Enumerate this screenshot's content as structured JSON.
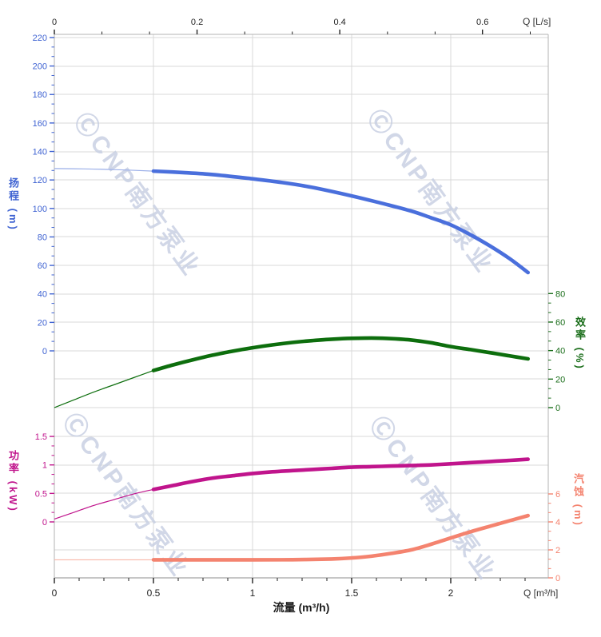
{
  "watermark": {
    "text": "ⒸCNP南方泵业",
    "color": "#c6cee2"
  },
  "labels": {
    "top_axis_unit": "Q [L/s]",
    "bottom_axis_unit": "Q [m³/h]",
    "bottom_axis_title": "流量 (m³/h)"
  },
  "chart_data": {
    "type": "line",
    "title": "",
    "xlabel": "流量 (m³/h)",
    "x_bottom": {
      "title": "流量 (m³/h)",
      "unit": "Q [m³/h]",
      "ticks": [
        0,
        0.5,
        1,
        1.5,
        2
      ],
      "minor_step": 0.125,
      "range": [
        0,
        2.49
      ]
    },
    "x_top": {
      "unit": "Q [L/s]",
      "ticks": [
        0,
        0.2,
        0.4,
        0.6
      ],
      "minor_step": 0.0667,
      "m3h_per_unit": 3.6
    },
    "grid": true,
    "legend": "none",
    "axes": [
      {
        "id": "head",
        "title": "扬程 (m)",
        "side": "left",
        "color": "#3f63d2",
        "min": 0,
        "max": 220,
        "step": 20,
        "grid_values": "all"
      },
      {
        "id": "eff",
        "title": "效率 (%)",
        "side": "right",
        "color": "#1b6e1b",
        "min": 0,
        "max": 80,
        "step": 20,
        "grid_values": [
          0,
          20
        ]
      },
      {
        "id": "power",
        "title": "功率 (kW)",
        "side": "left",
        "color": "#c0148c",
        "min": 0,
        "max": 1.5,
        "step": 0.5,
        "grid_values": "all"
      },
      {
        "id": "npsh",
        "title": "汽蚀 (m)",
        "side": "right",
        "color": "#f4836f",
        "min": 0,
        "max": 6,
        "step": 2,
        "grid_values": [
          2
        ]
      }
    ],
    "series": [
      {
        "id": "head-curve",
        "name": "扬程",
        "axis": "head",
        "color": "#4a6fdc",
        "thin_color": "#9aaee8",
        "split_q": 0.5,
        "points": [
          [
            0,
            128
          ],
          [
            0.15,
            127.8
          ],
          [
            0.3,
            127.3
          ],
          [
            0.5,
            126.2
          ],
          [
            0.65,
            125.2
          ],
          [
            0.8,
            123.8
          ],
          [
            1.0,
            120.8
          ],
          [
            1.15,
            118.2
          ],
          [
            1.3,
            114.8
          ],
          [
            1.5,
            108.8
          ],
          [
            1.65,
            103.7
          ],
          [
            1.8,
            98.2
          ],
          [
            1.9,
            93.5
          ],
          [
            2.0,
            88.5
          ],
          [
            2.1,
            81.5
          ],
          [
            2.2,
            73.5
          ],
          [
            2.3,
            64.5
          ],
          [
            2.39,
            55
          ]
        ]
      },
      {
        "id": "eff-curve",
        "name": "效率",
        "axis": "eff",
        "color": "#0d6e0d",
        "thin_color": "#0d6e0d",
        "split_q": 0.5,
        "points": [
          [
            0,
            0
          ],
          [
            0.1,
            5.5
          ],
          [
            0.2,
            11
          ],
          [
            0.3,
            16
          ],
          [
            0.4,
            21
          ],
          [
            0.5,
            26
          ],
          [
            0.6,
            30
          ],
          [
            0.7,
            33.6
          ],
          [
            0.8,
            36.8
          ],
          [
            0.9,
            39.6
          ],
          [
            1.0,
            42
          ],
          [
            1.1,
            44
          ],
          [
            1.2,
            45.7
          ],
          [
            1.3,
            47
          ],
          [
            1.4,
            48
          ],
          [
            1.5,
            48.6
          ],
          [
            1.6,
            48.8
          ],
          [
            1.7,
            48.4
          ],
          [
            1.8,
            47.4
          ],
          [
            1.9,
            45.5
          ],
          [
            2.0,
            42.8
          ],
          [
            2.1,
            40.7
          ],
          [
            2.2,
            38.5
          ],
          [
            2.3,
            36.2
          ],
          [
            2.39,
            34.2
          ]
        ]
      },
      {
        "id": "power-curve",
        "name": "功率",
        "axis": "power",
        "color": "#c0148c",
        "thin_color": "#c0148c",
        "split_q": 0.5,
        "points": [
          [
            0,
            0.05
          ],
          [
            0.1,
            0.17
          ],
          [
            0.2,
            0.29
          ],
          [
            0.3,
            0.39
          ],
          [
            0.4,
            0.49
          ],
          [
            0.5,
            0.57
          ],
          [
            0.6,
            0.64
          ],
          [
            0.7,
            0.71
          ],
          [
            0.8,
            0.77
          ],
          [
            0.9,
            0.81
          ],
          [
            1.0,
            0.85
          ],
          [
            1.1,
            0.88
          ],
          [
            1.2,
            0.9
          ],
          [
            1.3,
            0.92
          ],
          [
            1.4,
            0.94
          ],
          [
            1.5,
            0.96
          ],
          [
            1.6,
            0.97
          ],
          [
            1.7,
            0.98
          ],
          [
            1.8,
            0.99
          ],
          [
            1.9,
            1.0
          ],
          [
            2.0,
            1.02
          ],
          [
            2.1,
            1.04
          ],
          [
            2.2,
            1.06
          ],
          [
            2.3,
            1.08
          ],
          [
            2.39,
            1.1
          ]
        ]
      },
      {
        "id": "npsh-curve",
        "name": "汽蚀",
        "axis": "npsh",
        "color": "#f4836f",
        "thin_color": "#f9b6a8",
        "split_q": 0.5,
        "points": [
          [
            0,
            1.29
          ],
          [
            0.5,
            1.29
          ],
          [
            1.0,
            1.29
          ],
          [
            1.2,
            1.3
          ],
          [
            1.4,
            1.35
          ],
          [
            1.5,
            1.42
          ],
          [
            1.6,
            1.55
          ],
          [
            1.7,
            1.75
          ],
          [
            1.8,
            2.0
          ],
          [
            1.9,
            2.4
          ],
          [
            2.0,
            2.85
          ],
          [
            2.1,
            3.3
          ],
          [
            2.2,
            3.7
          ],
          [
            2.3,
            4.1
          ],
          [
            2.39,
            4.45
          ]
        ]
      }
    ]
  }
}
